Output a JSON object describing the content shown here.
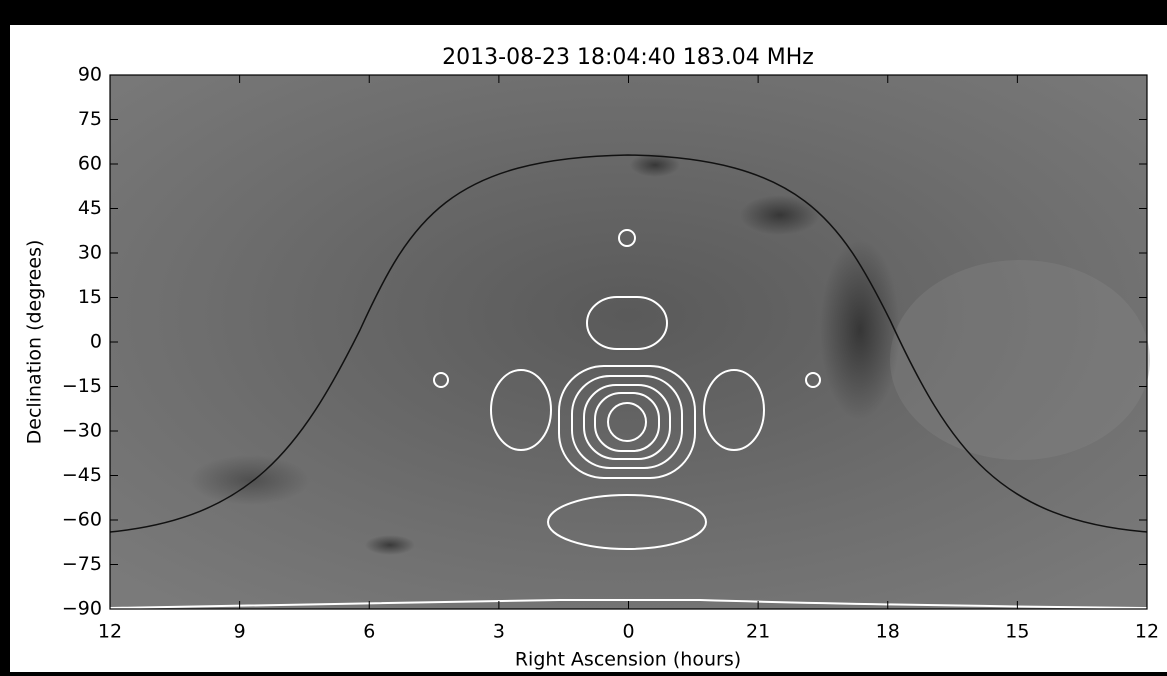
{
  "chart_data": {
    "type": "image",
    "title": "2013-08-23 18:04:40 183.04 MHz",
    "xlabel": "Right Ascension (hours)",
    "ylabel": "Declination (degrees)",
    "xlim": [
      12,
      -12
    ],
    "xticks": [
      12,
      9,
      6,
      3,
      0,
      {
        "value": -3,
        "label": "21"
      },
      {
        "value": -6,
        "label": "18"
      },
      {
        "value": -9,
        "label": "15"
      },
      {
        "value": -12,
        "label": "12"
      }
    ],
    "ylim": [
      -90,
      90
    ],
    "yticks": [
      {
        "value": -90,
        "label": "−90"
      },
      {
        "value": -75,
        "label": "−75"
      },
      {
        "value": -60,
        "label": "−60"
      },
      {
        "value": -45,
        "label": "−45"
      },
      {
        "value": -30,
        "label": "−30"
      },
      {
        "value": -15,
        "label": "−15"
      },
      0,
      15,
      30,
      45,
      60,
      75,
      90
    ]
  }
}
